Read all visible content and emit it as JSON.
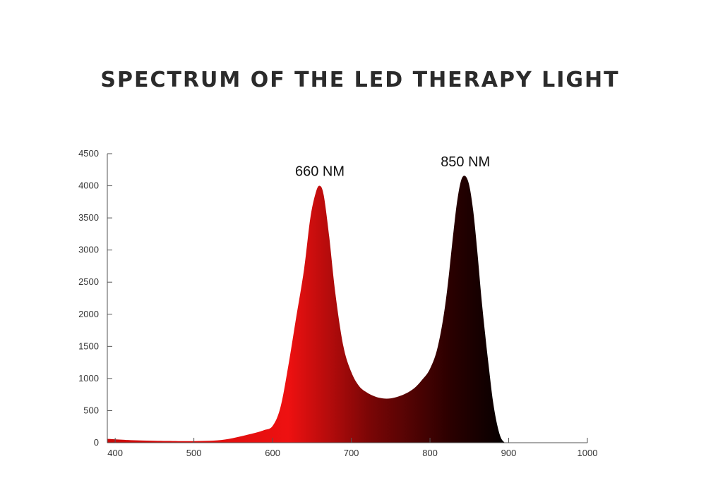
{
  "title": "SPECTRUM OF THE LED THERAPY LIGHT",
  "chart_data": {
    "type": "area",
    "title": "SPECTRUM OF THE LED THERAPY LIGHT",
    "xlabel": "",
    "ylabel": "",
    "xlim": [
      390,
      1000
    ],
    "ylim": [
      0,
      4500
    ],
    "x_ticks": [
      400,
      500,
      600,
      700,
      800,
      900,
      1000
    ],
    "y_ticks": [
      0,
      500,
      1000,
      1500,
      2000,
      2500,
      3000,
      3500,
      4000,
      4500
    ],
    "grid": false,
    "series": [
      {
        "x": [
          390,
          420,
          450,
          480,
          500,
          520,
          540,
          560,
          580,
          590,
          600,
          610,
          620,
          630,
          640,
          648,
          655,
          660,
          665,
          672,
          680,
          690,
          700,
          710,
          720,
          730,
          740,
          750,
          760,
          770,
          780,
          790,
          800,
          810,
          820,
          830,
          835,
          840,
          845,
          850,
          855,
          860,
          865,
          870,
          875,
          880,
          885,
          890,
          895
        ],
        "y": [
          60,
          40,
          30,
          25,
          25,
          30,
          50,
          100,
          160,
          200,
          260,
          550,
          1200,
          1950,
          2700,
          3500,
          3900,
          4000,
          3850,
          3200,
          2300,
          1500,
          1100,
          880,
          780,
          720,
          690,
          690,
          720,
          770,
          850,
          980,
          1150,
          1500,
          2200,
          3300,
          3800,
          4100,
          4150,
          4000,
          3600,
          3000,
          2300,
          1700,
          1150,
          650,
          300,
          80,
          0
        ]
      }
    ],
    "color_gradient": [
      "#c80a0a",
      "#ee1111",
      "#7a0606",
      "#2a0000",
      "#000000"
    ],
    "annotations": [
      {
        "text": "660 NM",
        "x": 660,
        "y": 4000
      },
      {
        "text": "850 NM",
        "x": 845,
        "y": 4150
      }
    ]
  }
}
